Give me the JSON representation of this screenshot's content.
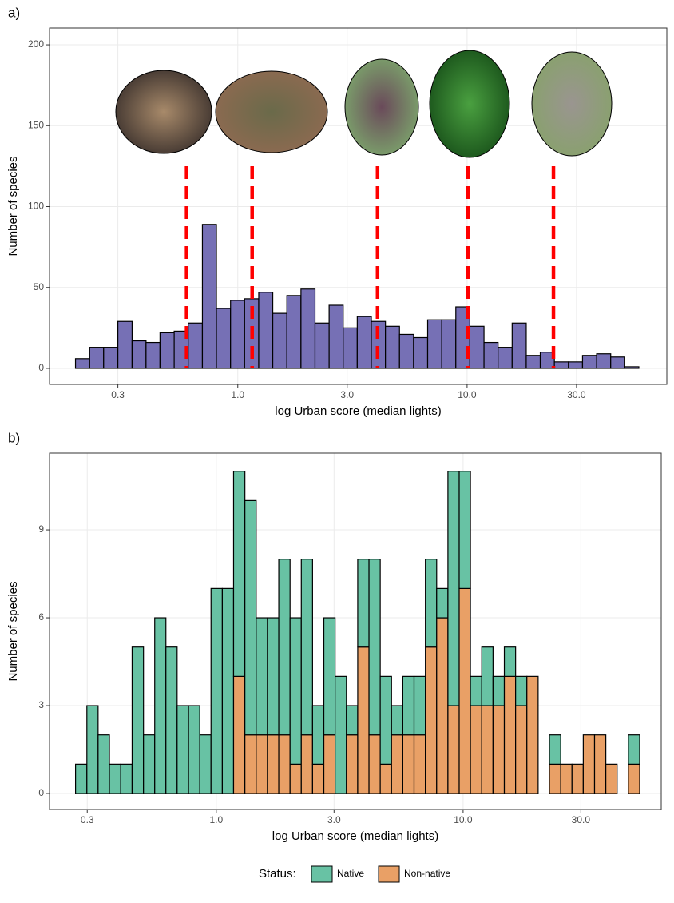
{
  "chart_data": [
    {
      "type": "histogram",
      "title": "a)",
      "x_label": "log Urban score (median lights)",
      "y_label": "Number of species",
      "xscale": "log",
      "grid": true,
      "color": "#7670b5",
      "xlim": [
        0.151,
        74.3
      ],
      "ylim": [
        -9.9,
        210.4
      ],
      "xticks": [
        0.3,
        {
          "value": 1,
          "label": "1.0"
        },
        {
          "value": 3,
          "label": "3.0"
        },
        {
          "value": 10,
          "label": "10.0"
        },
        {
          "value": 30,
          "label": "30.0"
        }
      ],
      "yticks": [
        0,
        50,
        100,
        150,
        200
      ],
      "bins": [
        0.196,
        0.226,
        0.26,
        0.3,
        0.346,
        0.398,
        0.458,
        0.528,
        0.608,
        0.701,
        0.807,
        0.93,
        1.071,
        1.234,
        1.421,
        1.637,
        1.886,
        2.172,
        2.502,
        2.882,
        3.319,
        3.823,
        4.404,
        5.073,
        5.843,
        6.73,
        7.752,
        8.929,
        10.28,
        11.85,
        13.65,
        15.72,
        18.11,
        20.85,
        24.02,
        27.67,
        31.87,
        36.71,
        42.29,
        48.71,
        56.1
      ],
      "values": [
        6,
        13,
        13,
        29,
        17,
        16,
        22,
        23,
        28,
        89,
        37,
        42,
        43,
        47,
        34,
        45,
        49,
        28,
        39,
        25,
        32,
        29,
        26,
        21,
        19,
        30,
        30,
        38,
        26,
        16,
        13,
        28,
        8,
        10,
        4,
        4,
        8,
        9,
        7,
        1
      ],
      "vlines": [
        0.598,
        1.155,
        4.07,
        10.07,
        23.8
      ],
      "vline_color": "#ff0000"
    },
    {
      "type": "histogram",
      "title": "b)",
      "x_label": "log Urban score (median lights)",
      "y_label": "Number of species",
      "xscale": "log",
      "grid": true,
      "stacked": true,
      "legend_title": "Status:",
      "legend": "bottom",
      "xlim": [
        0.211,
        63.5
      ],
      "ylim": [
        -0.545,
        11.62
      ],
      "xticks": [
        0.3,
        {
          "value": 1,
          "label": "1.0"
        },
        {
          "value": 3,
          "label": "3.0"
        },
        {
          "value": 10,
          "label": "10.0"
        },
        {
          "value": 30,
          "label": "30.0"
        }
      ],
      "yticks": [
        0,
        3,
        6,
        9
      ],
      "bins": [
        0.269,
        0.299,
        0.332,
        0.369,
        0.41,
        0.456,
        0.507,
        0.563,
        0.625,
        0.694,
        0.772,
        0.857,
        0.952,
        1.058,
        1.175,
        1.306,
        1.451,
        1.612,
        1.791,
        1.99,
        2.21,
        2.455,
        2.728,
        3.03,
        3.367,
        3.741,
        4.156,
        4.616,
        5.129,
        5.698,
        6.33,
        7.033,
        7.813,
        8.68,
        9.643,
        10.71,
        11.9,
        13.22,
        14.69,
        16.32,
        18.13,
        20.14,
        22.38,
        24.86,
        27.62,
        30.68,
        34.09,
        37.87,
        42.07,
        46.74,
        51.93
      ],
      "series": [
        {
          "name": "Native",
          "color": "#68c2a4",
          "values": [
            1,
            3,
            2,
            1,
            1,
            5,
            2,
            6,
            5,
            3,
            3,
            2,
            7,
            7,
            7,
            8,
            4,
            4,
            6,
            5,
            6,
            2,
            4,
            4,
            1,
            3,
            6,
            3,
            1,
            2,
            2,
            3,
            1,
            8,
            4,
            1,
            2,
            1,
            1,
            1,
            0,
            0,
            1,
            0,
            0,
            0,
            0,
            0,
            0,
            1
          ]
        },
        {
          "name": "Non-native",
          "color": "#e9a066",
          "values": [
            0,
            0,
            0,
            0,
            0,
            0,
            0,
            0,
            0,
            0,
            0,
            0,
            0,
            0,
            4,
            2,
            2,
            2,
            2,
            1,
            2,
            1,
            2,
            0,
            2,
            5,
            2,
            1,
            2,
            2,
            2,
            5,
            6,
            3,
            7,
            3,
            3,
            3,
            4,
            3,
            4,
            0,
            1,
            1,
            1,
            2,
            2,
            1,
            0,
            1
          ]
        }
      ]
    }
  ]
}
